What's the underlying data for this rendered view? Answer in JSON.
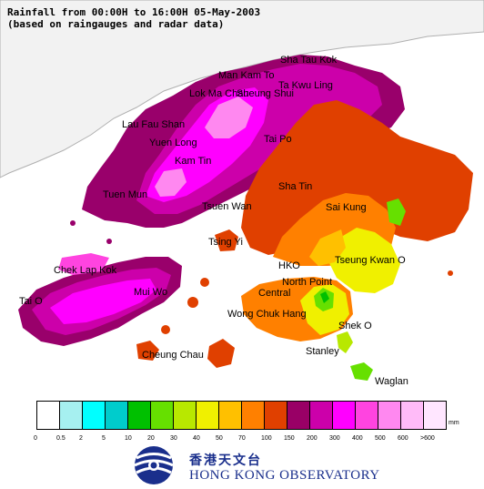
{
  "title": {
    "line1": "Rainfall from 00:00H to 16:00H 05-May-2003",
    "line2": "(based on raingauges and radar data)"
  },
  "places": [
    {
      "name": "Sha Tau Kok"
    },
    {
      "name": "Man Kam To"
    },
    {
      "name": "Ta Kwu Ling"
    },
    {
      "name": "Lok Ma Chau"
    },
    {
      "name": "Sheung Shui"
    },
    {
      "name": "Lau Fau Shan"
    },
    {
      "name": "Tai Po"
    },
    {
      "name": "Yuen Long"
    },
    {
      "name": "Kam Tin"
    },
    {
      "name": "Sha Tin"
    },
    {
      "name": "Tuen Mun"
    },
    {
      "name": "Tsuen Wan"
    },
    {
      "name": "Sai Kung"
    },
    {
      "name": "Tsing Yi"
    },
    {
      "name": "Tseung Kwan O"
    },
    {
      "name": "Chek Lap Kok"
    },
    {
      "name": "HKO"
    },
    {
      "name": "North Point"
    },
    {
      "name": "Mui Wo"
    },
    {
      "name": "Central"
    },
    {
      "name": "Tai O"
    },
    {
      "name": "Wong Chuk Hang"
    },
    {
      "name": "Shek O"
    },
    {
      "name": "Stanley"
    },
    {
      "name": "Cheung Chau"
    },
    {
      "name": "Waglan"
    }
  ],
  "legend": {
    "unit": "mm",
    "colors": [
      "#ffffff",
      "#a6f0f0",
      "#00ffff",
      "#00cccc",
      "#00c000",
      "#66e000",
      "#b8e800",
      "#f0f000",
      "#ffc000",
      "#ff8000",
      "#e04000",
      "#990066",
      "#cc00aa",
      "#ff00ff",
      "#ff44e0",
      "#ff88f0",
      "#ffbbf8",
      "#ffe6ff"
    ],
    "ticks": [
      "0",
      "0.5",
      "2",
      "5",
      "10",
      "20",
      "30",
      "40",
      "50",
      "70",
      "100",
      "150",
      "200",
      "300",
      "400",
      "500",
      "600",
      ">600"
    ]
  },
  "organization": {
    "name_zh": "香港天文台",
    "name_en": "HONG KONG OBSERVATORY"
  },
  "icons": {
    "logo": "hko-logo-icon"
  }
}
